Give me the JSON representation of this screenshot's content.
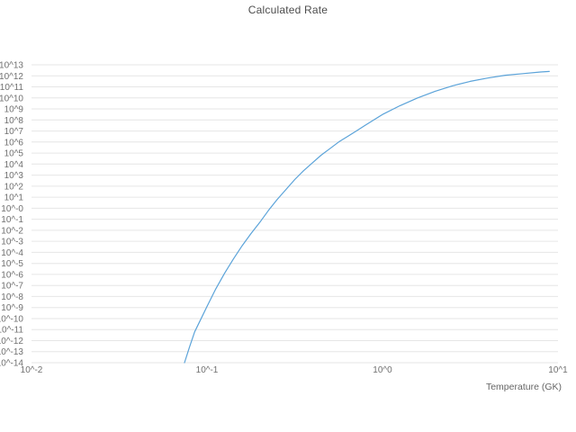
{
  "chart_data": {
    "type": "line",
    "title": "Calculated Rate",
    "xlabel": "Temperature (GK)",
    "ylabel": "",
    "x_scale": "log10",
    "y_scale": "log10",
    "xlim_log10": [
      -2,
      1
    ],
    "ylim_log10": [
      -14,
      13
    ],
    "grid": "horizontal",
    "legend": "none",
    "colors": {
      "line": "#5ba3d9",
      "grid": "#e6e6e6",
      "tick_text": "#707070",
      "title_text": "#4d4d4d"
    },
    "x_ticks": [
      {
        "label": "10^-2",
        "log": -2
      },
      {
        "label": "10^-1",
        "log": -1
      },
      {
        "label": "10^0",
        "log": 0
      },
      {
        "label": "10^1",
        "log": 1
      }
    ],
    "y_ticks": [
      {
        "label": "10^13",
        "log": 13
      },
      {
        "label": "10^12",
        "log": 12
      },
      {
        "label": "10^11",
        "log": 11
      },
      {
        "label": "10^10",
        "log": 10
      },
      {
        "label": "10^9",
        "log": 9
      },
      {
        "label": "10^8",
        "log": 8
      },
      {
        "label": "10^7",
        "log": 7
      },
      {
        "label": "10^6",
        "log": 6
      },
      {
        "label": "10^5",
        "log": 5
      },
      {
        "label": "10^4",
        "log": 4
      },
      {
        "label": "10^3",
        "log": 3
      },
      {
        "label": "10^2",
        "log": 2
      },
      {
        "label": "10^1",
        "log": 1
      },
      {
        "label": "10^-0",
        "log": 0
      },
      {
        "label": "10^-1",
        "log": -1
      },
      {
        "label": "10^-2",
        "log": -2
      },
      {
        "label": "10^-3",
        "log": -3
      },
      {
        "label": "10^-4",
        "log": -4
      },
      {
        "label": "10^-5",
        "log": -5
      },
      {
        "label": "10^-6",
        "log": -6
      },
      {
        "label": "10^-7",
        "log": -7
      },
      {
        "label": "10^-8",
        "log": -8
      },
      {
        "label": "10^-9",
        "log": -9
      },
      {
        "label": "10^-10",
        "log": -10
      },
      {
        "label": "10^-11",
        "log": -11
      },
      {
        "label": "10^-12",
        "log": -12
      },
      {
        "label": "10^-13",
        "log": -13
      },
      {
        "label": "10^-14",
        "log": -14
      }
    ],
    "series": [
      {
        "name": "calculated-rate",
        "color": "#5ba3d9",
        "x_unit": "GK",
        "points_log10": [
          [
            -1.128,
            -14.0
          ],
          [
            -1.1,
            -12.6
          ],
          [
            -1.07,
            -11.2
          ],
          [
            -1.03,
            -9.9
          ],
          [
            -1.0,
            -8.9
          ],
          [
            -0.95,
            -7.3
          ],
          [
            -0.9,
            -5.9
          ],
          [
            -0.85,
            -4.6
          ],
          [
            -0.8,
            -3.4
          ],
          [
            -0.75,
            -2.3
          ],
          [
            -0.7,
            -1.3
          ],
          [
            -0.65,
            -0.2
          ],
          [
            -0.6,
            0.8
          ],
          [
            -0.55,
            1.7
          ],
          [
            -0.5,
            2.6
          ],
          [
            -0.45,
            3.4
          ],
          [
            -0.4,
            4.1
          ],
          [
            -0.35,
            4.8
          ],
          [
            -0.3,
            5.4
          ],
          [
            -0.25,
            6.0
          ],
          [
            -0.2,
            6.5
          ],
          [
            -0.15,
            7.0
          ],
          [
            -0.1,
            7.5
          ],
          [
            -0.05,
            8.0
          ],
          [
            0.0,
            8.5
          ],
          [
            0.1,
            9.3
          ],
          [
            0.2,
            10.0
          ],
          [
            0.3,
            10.6
          ],
          [
            0.4,
            11.1
          ],
          [
            0.5,
            11.5
          ],
          [
            0.6,
            11.8
          ],
          [
            0.7,
            12.05
          ],
          [
            0.8,
            12.2
          ],
          [
            0.9,
            12.35
          ],
          [
            0.95,
            12.4
          ]
        ]
      }
    ]
  }
}
